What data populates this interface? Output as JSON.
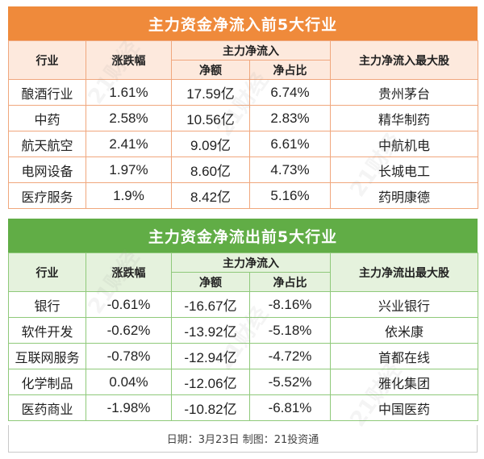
{
  "inflow": {
    "title": "主力资金净流入前5大行业",
    "headers": {
      "industry": "行业",
      "change": "涨跌幅",
      "group": "主力净流入",
      "amount": "净额",
      "ratio": "净占比",
      "top_stock": "主力净流入最大股"
    },
    "rows": [
      {
        "industry": "酿酒行业",
        "change": "1.61%",
        "amount": "17.59亿",
        "ratio": "6.74%",
        "top_stock": "贵州茅台"
      },
      {
        "industry": "中药",
        "change": "2.58%",
        "amount": "10.56亿",
        "ratio": "2.83%",
        "top_stock": "精华制药"
      },
      {
        "industry": "航天航空",
        "change": "2.41%",
        "amount": "9.09亿",
        "ratio": "6.61%",
        "top_stock": "中航机电"
      },
      {
        "industry": "电网设备",
        "change": "1.97%",
        "amount": "8.60亿",
        "ratio": "4.73%",
        "top_stock": "长城电工"
      },
      {
        "industry": "医疗服务",
        "change": "1.9%",
        "amount": "8.42亿",
        "ratio": "5.16%",
        "top_stock": "药明康德"
      }
    ]
  },
  "outflow": {
    "title": "主力资金净流出前5大行业",
    "headers": {
      "industry": "行业",
      "change": "涨跌幅",
      "group": "主力净流入",
      "amount": "净额",
      "ratio": "净占比",
      "top_stock": "主力净流出最大股"
    },
    "rows": [
      {
        "industry": "银行",
        "change": "-0.61%",
        "amount": "-16.67亿",
        "ratio": "-8.16%",
        "top_stock": "兴业银行"
      },
      {
        "industry": "软件开发",
        "change": "-0.62%",
        "amount": "-13.92亿",
        "ratio": "-5.18%",
        "top_stock": "依米康"
      },
      {
        "industry": "互联网服务",
        "change": "-0.78%",
        "amount": "-12.94亿",
        "ratio": "-4.72%",
        "top_stock": "首都在线"
      },
      {
        "industry": "化学制品",
        "change": "0.04%",
        "amount": "-12.06亿",
        "ratio": "-5.52%",
        "top_stock": "雅化集团"
      },
      {
        "industry": "医药商业",
        "change": "-1.98%",
        "amount": "-10.82亿",
        "ratio": "-6.81%",
        "top_stock": "中国医药"
      }
    ]
  },
  "footer": "日期：3月23日  制图：21投资通",
  "watermark": "21财经",
  "colors": {
    "inflow_banner": "#ef8a3b",
    "inflow_header_bg": "#fde9dd",
    "outflow_banner": "#61ad46",
    "outflow_header_bg": "#e5f2dd"
  }
}
